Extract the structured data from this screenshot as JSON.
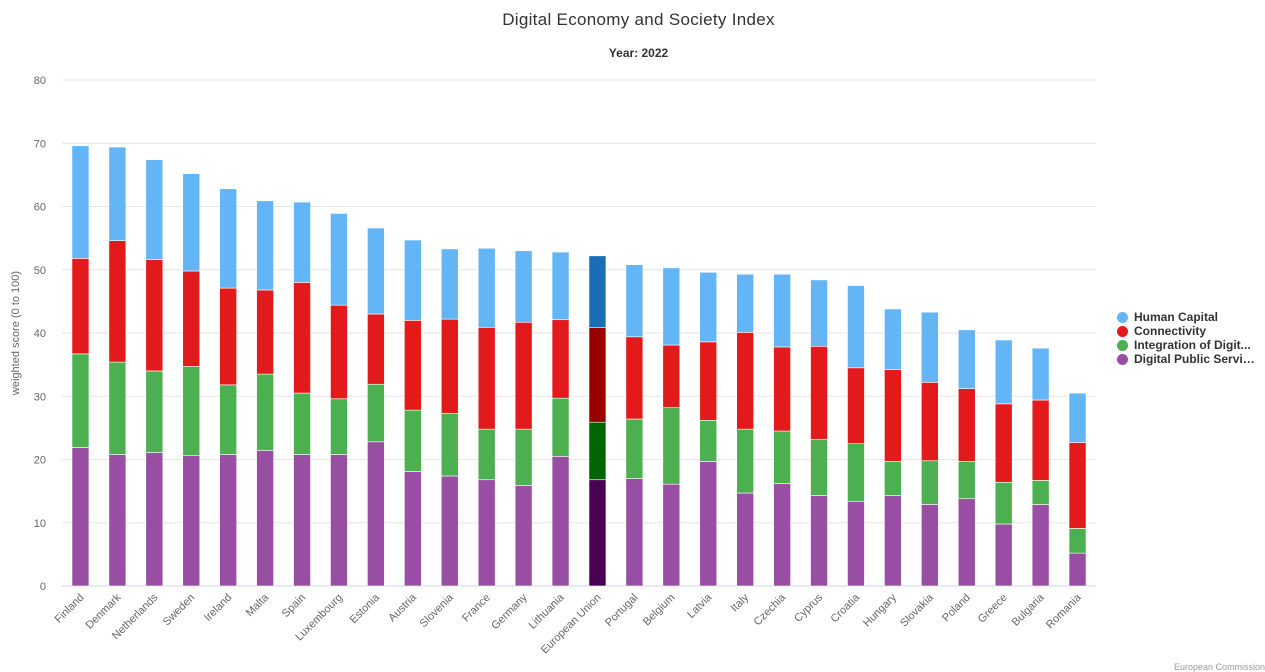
{
  "header": {
    "title": "Digital Economy and Society Index",
    "subtitle": "Year: 2022"
  },
  "credits": "European Commission",
  "legend": [
    {
      "label": "Human Capital",
      "color": "#64b5f6"
    },
    {
      "label": "Connectivity",
      "color": "#e31a1c"
    },
    {
      "label": "Integration of Digit...",
      "color": "#4caf50"
    },
    {
      "label": "Digital Public Servic...",
      "color": "#984ea3"
    }
  ],
  "chart_data": {
    "type": "bar",
    "stacked": true,
    "title": "Digital Economy and Society Index",
    "subtitle": "Year: 2022",
    "ylabel": "weighted score (0 to 100)",
    "xlabel": "",
    "ylim": [
      0,
      80
    ],
    "yticks": [
      0,
      10,
      20,
      30,
      40,
      50,
      60,
      70,
      80
    ],
    "grid": true,
    "legend_position": "right",
    "highlight_category": "European Union",
    "highlight_colors": [
      "#4a0052",
      "#006400",
      "#990000",
      "#1a6eb5"
    ],
    "categories": [
      "Finland",
      "Denmark",
      "Netherlands",
      "Sweden",
      "Ireland",
      "Malta",
      "Spain",
      "Luxembourg",
      "Estonia",
      "Austria",
      "Slovenia",
      "France",
      "Germany",
      "Lithuania",
      "European Union",
      "Portugal",
      "Belgium",
      "Latvia",
      "Italy",
      "Czechia",
      "Cyprus",
      "Croatia",
      "Hungary",
      "Slovakia",
      "Poland",
      "Greece",
      "Bulgaria",
      "Romania"
    ],
    "series": [
      {
        "name": "Digital Public Servic...",
        "color": "#984ea3",
        "values": [
          21.9,
          20.8,
          21.1,
          20.6,
          20.8,
          21.4,
          20.8,
          20.8,
          22.8,
          18.1,
          17.4,
          16.8,
          15.9,
          20.5,
          16.8,
          17.0,
          16.1,
          19.7,
          14.7,
          16.2,
          14.3,
          13.4,
          14.3,
          12.9,
          13.8,
          9.8,
          12.9,
          5.2
        ]
      },
      {
        "name": "Integration of Digit...",
        "color": "#4caf50",
        "values": [
          14.8,
          14.6,
          12.9,
          14.1,
          11.0,
          12.1,
          9.7,
          8.8,
          9.1,
          9.7,
          9.9,
          8.0,
          8.9,
          9.2,
          9.1,
          9.4,
          12.1,
          6.5,
          10.1,
          8.3,
          8.9,
          9.1,
          5.4,
          6.9,
          5.9,
          6.6,
          3.8,
          3.9
        ]
      },
      {
        "name": "Connectivity",
        "color": "#e31a1c",
        "values": [
          15.1,
          19.2,
          17.6,
          15.1,
          15.3,
          13.3,
          17.5,
          14.8,
          11.1,
          14.2,
          14.9,
          16.1,
          16.9,
          12.4,
          15.0,
          13.0,
          9.9,
          12.4,
          15.3,
          13.3,
          14.7,
          12.0,
          14.5,
          12.4,
          11.5,
          12.4,
          12.7,
          13.6
        ]
      },
      {
        "name": "Human Capital",
        "color": "#64b5f6",
        "values": [
          17.8,
          14.8,
          15.8,
          15.4,
          15.7,
          14.1,
          12.7,
          14.5,
          13.6,
          12.7,
          11.1,
          12.5,
          11.3,
          10.7,
          11.3,
          11.4,
          12.2,
          11.0,
          9.2,
          11.5,
          10.5,
          13.0,
          9.6,
          11.1,
          9.3,
          10.1,
          8.2,
          7.8
        ]
      }
    ]
  }
}
